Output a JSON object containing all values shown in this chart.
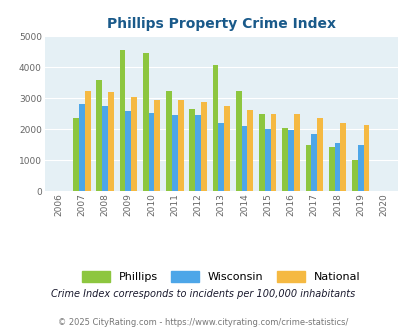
{
  "title": "Phillips Property Crime Index",
  "years": [
    2006,
    2007,
    2008,
    2009,
    2010,
    2011,
    2012,
    2013,
    2014,
    2015,
    2016,
    2017,
    2018,
    2019,
    2020
  ],
  "phillips": [
    null,
    2380,
    3580,
    4560,
    4450,
    3250,
    2670,
    4080,
    3250,
    2480,
    2050,
    1490,
    1430,
    1010,
    null
  ],
  "wisconsin": [
    null,
    2830,
    2760,
    2600,
    2520,
    2460,
    2460,
    2200,
    2100,
    2000,
    1970,
    1840,
    1550,
    1490,
    null
  ],
  "national": [
    null,
    3250,
    3210,
    3040,
    2960,
    2940,
    2890,
    2760,
    2630,
    2510,
    2480,
    2380,
    2200,
    2150,
    null
  ],
  "phillips_color": "#8dc63f",
  "wisconsin_color": "#4da6e8",
  "national_color": "#f5b942",
  "bg_color": "#e5f0f5",
  "fig_color": "#ffffff",
  "ylim": [
    0,
    5000
  ],
  "yticks": [
    0,
    1000,
    2000,
    3000,
    4000,
    5000
  ],
  "legend_labels": [
    "Phillips",
    "Wisconsin",
    "National"
  ],
  "footnote1": "Crime Index corresponds to incidents per 100,000 inhabitants",
  "footnote2": "© 2025 CityRating.com - https://www.cityrating.com/crime-statistics/",
  "title_color": "#1a5a8a",
  "footnote1_color": "#1a1a2e",
  "footnote2_color": "#777777",
  "url_color": "#4472c4",
  "bar_width": 0.25
}
